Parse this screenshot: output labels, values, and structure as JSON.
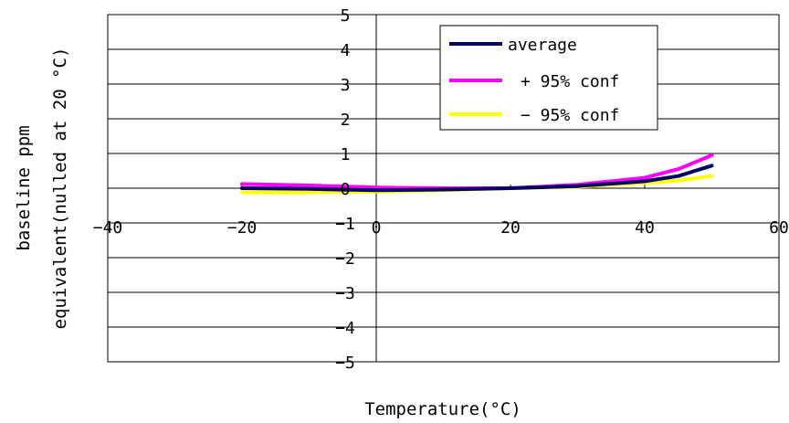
{
  "chart_data": {
    "type": "line",
    "title": "",
    "xlabel": "Temperature(°C)",
    "ylabel_lines": [
      "baseline ppm",
      "equivalent(nulled at 20 °C)"
    ],
    "xlim": [
      -40,
      60
    ],
    "ylim": [
      -5,
      5
    ],
    "x_ticks": [
      -40,
      -20,
      0,
      20,
      40,
      60
    ],
    "y_ticks": [
      5,
      4,
      3,
      2,
      1,
      0,
      -1,
      -2,
      -3,
      -4,
      -5
    ],
    "x_tick_labels": [
      "−40",
      "−20",
      "0",
      "20",
      "40",
      "60"
    ],
    "y_tick_labels": [
      "5",
      "4",
      "3",
      "2",
      "1",
      "0",
      "−1",
      "−2",
      "−3",
      "−4",
      "−5"
    ],
    "grid": "horizontal",
    "legend_position": "top-right",
    "x": [
      -20,
      -10,
      0,
      10,
      20,
      30,
      40,
      45,
      50
    ],
    "series": [
      {
        "name": "average",
        "color": "#000066",
        "values": [
          0.0,
          -0.02,
          -0.06,
          -0.04,
          0.0,
          0.06,
          0.2,
          0.35,
          0.65
        ]
      },
      {
        "name": "+ 95% conf",
        "color": "#ff00ff",
        "values": [
          0.12,
          0.08,
          0.02,
          0.0,
          0.0,
          0.1,
          0.3,
          0.55,
          0.95
        ]
      },
      {
        "name": "− 95% conf",
        "color": "#ffff00",
        "values": [
          -0.12,
          -0.12,
          -0.1,
          -0.06,
          0.0,
          0.04,
          0.15,
          0.22,
          0.35
        ]
      }
    ]
  }
}
